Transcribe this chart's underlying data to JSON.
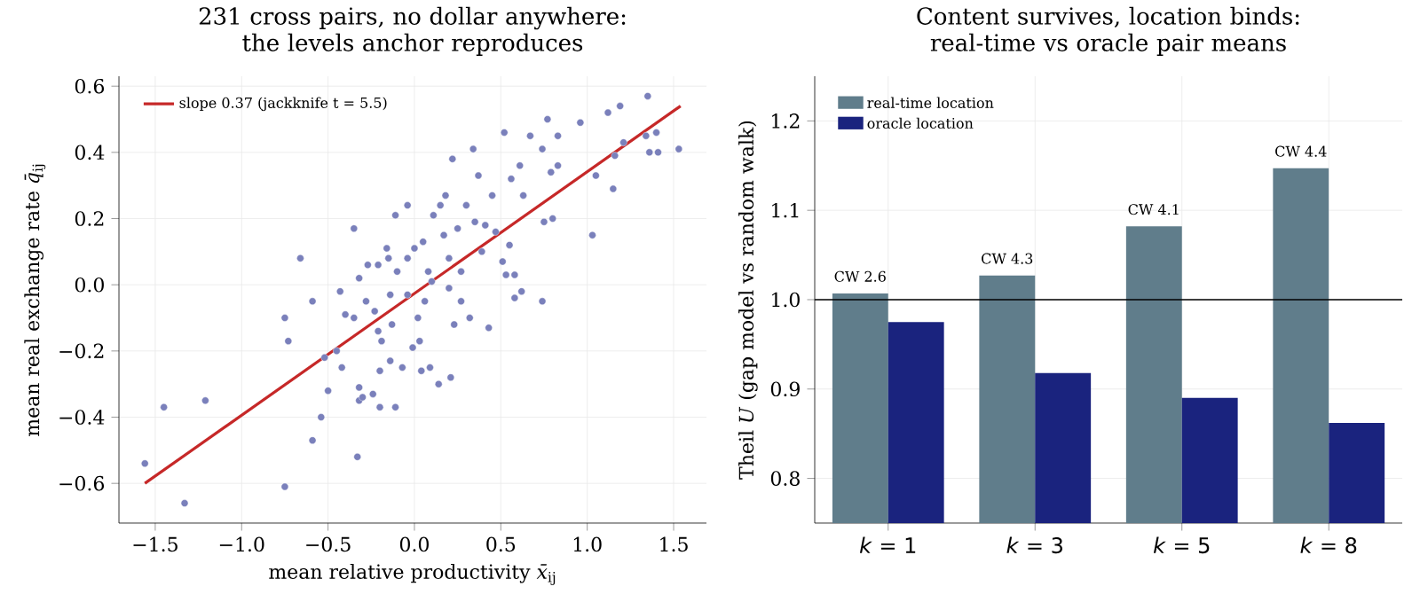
{
  "chart_data": [
    {
      "type": "scatter",
      "title": "231 cross pairs, no dollar anywhere: the levels anchor reproduces",
      "xlabel": "mean relative productivity *x̄*$_{ij}$",
      "ylabel": "mean real exchange rate *q̄*$_{ij}$",
      "xlim": [
        -1.71,
        1.69
      ],
      "ylim": [
        -0.72,
        0.63
      ],
      "xticks": [
        {
          "value": -1.5,
          "label": "−1.5"
        },
        {
          "value": -1.0,
          "label": "−1.0"
        },
        {
          "value": -0.5,
          "label": "−0.5"
        },
        {
          "value": 0.0,
          "label": "0.0"
        },
        {
          "value": 0.5,
          "label": "0.5"
        },
        {
          "value": 1.0,
          "label": "1.0"
        },
        {
          "value": 1.5,
          "label": "1.5"
        }
      ],
      "yticks": [
        {
          "value": -0.6,
          "label": "−0.6"
        },
        {
          "value": -0.4,
          "label": "−0.4"
        },
        {
          "value": -0.2,
          "label": "−0.2"
        },
        {
          "value": 0.0,
          "label": "0.0"
        },
        {
          "value": 0.2,
          "label": "0.2"
        },
        {
          "value": 0.4,
          "label": "0.4"
        },
        {
          "value": 0.6,
          "label": "0.6"
        }
      ],
      "grid": true,
      "legend": "top left",
      "series": [
        {
          "type": "scatter",
          "marker": "circle",
          "color": "#7a80bb",
          "x": [
            -1.56,
            -1.45,
            -1.33,
            -1.21,
            -0.75,
            -0.75,
            -0.73,
            -0.66,
            -0.59,
            -0.59,
            -0.54,
            -0.52,
            -0.5,
            -0.45,
            -0.43,
            -0.42,
            -0.4,
            -0.35,
            -0.33,
            -0.32,
            -0.32,
            -0.32,
            -0.3,
            -0.27,
            -0.24,
            -0.23,
            -0.21,
            -0.2,
            -0.2,
            -0.19,
            -0.16,
            -0.15,
            -0.14,
            -0.13,
            -0.11,
            -0.11,
            -0.1,
            -0.07,
            -0.04,
            -0.04,
            -0.01,
            0.0,
            0.02,
            0.04,
            0.05,
            0.08,
            0.09,
            0.11,
            0.14,
            0.15,
            0.17,
            0.18,
            0.2,
            0.21,
            0.22,
            0.23,
            0.25,
            0.27,
            0.3,
            0.32,
            0.34,
            0.35,
            0.37,
            0.39,
            0.41,
            0.43,
            0.45,
            0.47,
            0.51,
            0.52,
            0.53,
            0.55,
            0.56,
            0.58,
            0.58,
            0.61,
            0.62,
            0.63,
            0.67,
            0.74,
            0.74,
            0.75,
            0.77,
            0.79,
            0.8,
            0.83,
            0.83,
            0.96,
            1.03,
            1.05,
            1.12,
            1.15,
            1.16,
            1.19,
            1.21,
            1.35,
            1.34,
            1.36,
            1.4,
            1.41,
            1.53,
            0.06,
            -0.04,
            -0.14,
            -0.21,
            0.03,
            0.27,
            0.1,
            -0.28,
            -0.35,
            0.2
          ],
          "values": [
            -0.54,
            -0.37,
            -0.66,
            -0.35,
            -0.61,
            -0.1,
            -0.17,
            0.08,
            -0.05,
            -0.47,
            -0.4,
            -0.22,
            -0.32,
            -0.2,
            -0.02,
            -0.25,
            -0.09,
            0.17,
            -0.52,
            -0.31,
            -0.35,
            0.02,
            -0.34,
            0.06,
            -0.33,
            -0.08,
            0.06,
            -0.26,
            -0.37,
            -0.17,
            0.11,
            0.08,
            -0.23,
            -0.12,
            0.21,
            -0.37,
            0.04,
            -0.25,
            0.24,
            -0.03,
            -0.19,
            0.11,
            -0.1,
            -0.26,
            0.13,
            0.04,
            -0.25,
            0.21,
            -0.3,
            0.24,
            0.15,
            0.27,
            0.08,
            -0.28,
            0.38,
            -0.12,
            0.17,
            -0.05,
            0.24,
            -0.1,
            0.41,
            0.19,
            0.33,
            0.1,
            0.18,
            -0.13,
            0.27,
            0.16,
            0.07,
            0.46,
            0.03,
            0.12,
            0.32,
            0.03,
            -0.04,
            0.36,
            -0.02,
            0.27,
            0.45,
            -0.05,
            0.41,
            0.19,
            0.5,
            0.34,
            0.2,
            0.45,
            0.36,
            0.49,
            0.15,
            0.33,
            0.52,
            0.29,
            0.39,
            0.54,
            0.43,
            0.57,
            0.45,
            0.4,
            0.46,
            0.4,
            0.41,
            -0.05,
            0.08,
            -0.03,
            -0.14,
            -0.17,
            0.04,
            0.01,
            -0.05,
            -0.1,
            -0.01
          ]
        },
        {
          "type": "line",
          "name": "slope 0.37 (jackknife t = 5.5)",
          "color": "#c62828",
          "x": [
            -1.56,
            1.54
          ],
          "values": [
            -0.6,
            0.54
          ]
        }
      ]
    },
    {
      "type": "bar",
      "title": "Content survives, location binds: real-time vs oracle pair means",
      "ylabel": "Theil *U* (gap model vs random walk)",
      "categories": [
        "*k* = 1",
        "*k* = 3",
        "*k* = 5",
        "*k* = 8"
      ],
      "ylim": [
        0.75,
        1.25
      ],
      "yticks": [
        {
          "value": 0.8,
          "label": "0.8"
        },
        {
          "value": 0.9,
          "label": "0.9"
        },
        {
          "value": 1.0,
          "label": "1.0"
        },
        {
          "value": 1.1,
          "label": "1.1"
        },
        {
          "value": 1.2,
          "label": "1.2"
        }
      ],
      "grid": true,
      "legend": "top left",
      "ref_lines": [
        {
          "axis": "y",
          "value": 1.0,
          "color": "#000000"
        }
      ],
      "series": [
        {
          "name": "real-time location",
          "color": "#607d8b",
          "values": [
            1.007,
            1.027,
            1.082,
            1.147
          ],
          "value_labels": [
            "CW 2.6",
            "CW 4.3",
            "CW 4.1",
            "CW 4.4"
          ]
        },
        {
          "name": "oracle location",
          "color": "#1a237e",
          "values": [
            0.975,
            0.918,
            0.89,
            0.862
          ]
        }
      ]
    }
  ]
}
